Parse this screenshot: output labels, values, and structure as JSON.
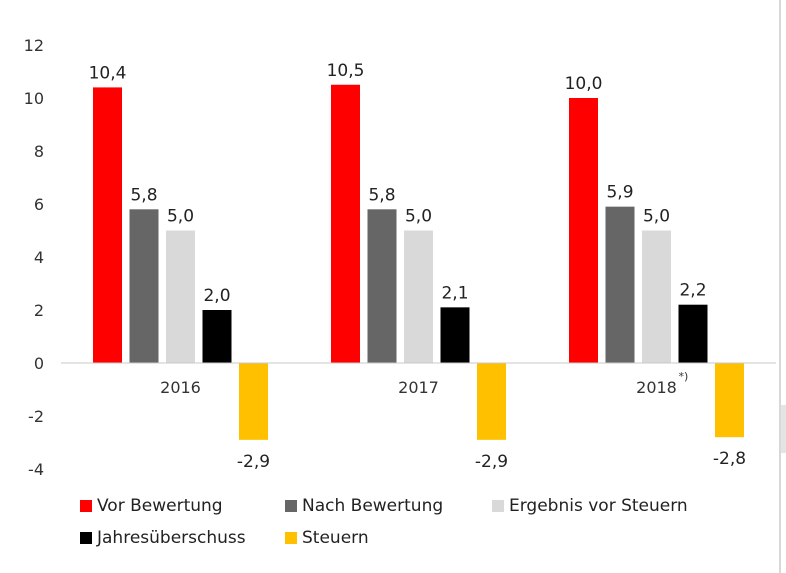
{
  "chart_data": {
    "type": "bar",
    "categories": [
      "2016",
      "2017",
      "2018"
    ],
    "category_notes": [
      "",
      "",
      "*)"
    ],
    "series": [
      {
        "name": "Vor Bewertung",
        "values": [
          10.4,
          10.5,
          10.0
        ],
        "labels": [
          "10,4",
          "10,5",
          "10,0"
        ],
        "color": "#ff0000"
      },
      {
        "name": "Nach Bewertung",
        "values": [
          5.8,
          5.8,
          5.9
        ],
        "labels": [
          "5,8",
          "5,8",
          "5,9"
        ],
        "color": "#666666"
      },
      {
        "name": "Ergebnis vor Steuern",
        "values": [
          5.0,
          5.0,
          5.0
        ],
        "labels": [
          "5,0",
          "5,0",
          "5,0"
        ],
        "color": "#d9d9d9"
      },
      {
        "name": "Jahresüberschuss",
        "values": [
          2.0,
          2.1,
          2.2
        ],
        "labels": [
          "2,0",
          "2,1",
          "2,2"
        ],
        "color": "#000000"
      },
      {
        "name": "Steuern",
        "values": [
          -2.9,
          -2.9,
          -2.8
        ],
        "labels": [
          "-2,9",
          "-2,9",
          "-2,8"
        ],
        "color": "#ffc000"
      }
    ],
    "ylim": [
      -4,
      12
    ],
    "yticks": [
      12,
      10,
      8,
      6,
      4,
      2,
      0,
      -2,
      -4
    ],
    "grid": false,
    "legend_position": "bottom"
  }
}
